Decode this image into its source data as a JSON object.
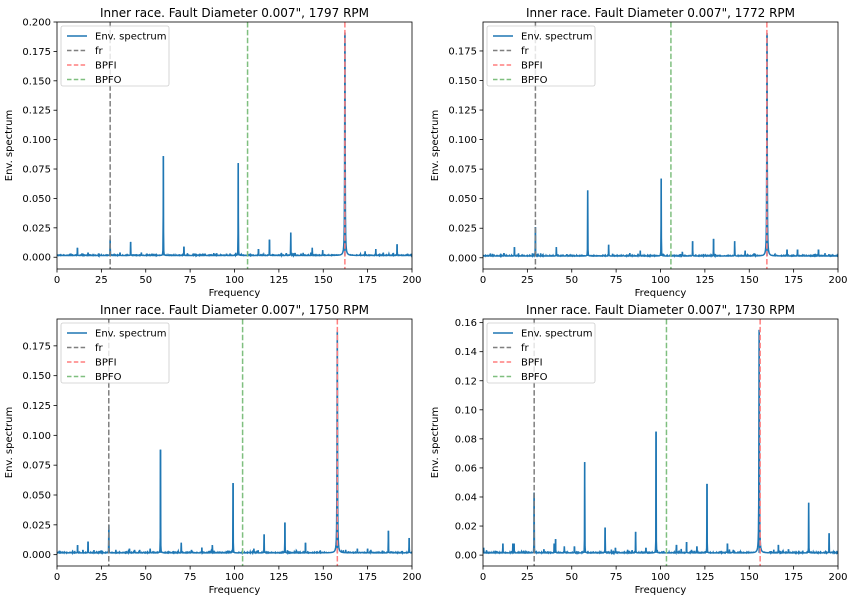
{
  "chart_data": [
    {
      "type": "line",
      "title": "Inner race. Fault Diameter 0.007\", 1797 RPM",
      "xlabel": "Frequency",
      "ylabel": "Env. spectrum",
      "xlim": [
        0,
        200
      ],
      "ylim": [
        -0.01,
        0.2
      ],
      "xticks": [
        0,
        25,
        50,
        75,
        100,
        125,
        150,
        175,
        200
      ],
      "yticks": [
        0.0,
        0.025,
        0.05,
        0.075,
        0.1,
        0.125,
        0.15,
        0.175,
        0.2
      ],
      "ytick_labels": [
        "0.000",
        "0.025",
        "0.050",
        "0.075",
        "0.100",
        "0.125",
        "0.150",
        "0.175",
        "0.200"
      ],
      "grid": false,
      "legend_position": "top-left",
      "legend": [
        "Env. spectrum",
        "fr",
        "BPFI",
        "BPFO"
      ],
      "reference_lines": {
        "fr": 29.95,
        "BPFI": 162.19,
        "BPFO": 107.36
      },
      "noise_floor": 0.0015,
      "peaks": [
        {
          "x": 11.5,
          "y": 0.008
        },
        {
          "x": 17.5,
          "y": 0.004
        },
        {
          "x": 29.95,
          "y": 0.015
        },
        {
          "x": 35.5,
          "y": 0.004
        },
        {
          "x": 41.5,
          "y": 0.013
        },
        {
          "x": 47.5,
          "y": 0.004
        },
        {
          "x": 53.5,
          "y": 0.003
        },
        {
          "x": 59.9,
          "y": 0.086
        },
        {
          "x": 71.5,
          "y": 0.009
        },
        {
          "x": 77.5,
          "y": 0.003
        },
        {
          "x": 83.5,
          "y": 0.003
        },
        {
          "x": 95.5,
          "y": 0.003
        },
        {
          "x": 102.1,
          "y": 0.08
        },
        {
          "x": 113.5,
          "y": 0.007
        },
        {
          "x": 119.7,
          "y": 0.015
        },
        {
          "x": 131.7,
          "y": 0.021
        },
        {
          "x": 137.5,
          "y": 0.003
        },
        {
          "x": 143.8,
          "y": 0.008
        },
        {
          "x": 149.7,
          "y": 0.006
        },
        {
          "x": 162.2,
          "y": 0.191
        },
        {
          "x": 173.6,
          "y": 0.005
        },
        {
          "x": 179.6,
          "y": 0.007
        },
        {
          "x": 191.6,
          "y": 0.011
        },
        {
          "x": 197.5,
          "y": 0.003
        }
      ]
    },
    {
      "type": "line",
      "title": "Inner race. Fault Diameter 0.007\", 1772 RPM",
      "xlabel": "Frequency",
      "ylabel": "Env. spectrum",
      "xlim": [
        0,
        200
      ],
      "ylim": [
        -0.0095,
        0.1995
      ],
      "xticks": [
        0,
        25,
        50,
        75,
        100,
        125,
        150,
        175,
        200
      ],
      "yticks": [
        0.0,
        0.025,
        0.05,
        0.075,
        0.1,
        0.125,
        0.15,
        0.175
      ],
      "ytick_labels": [
        "0.000",
        "0.025",
        "0.050",
        "0.075",
        "0.100",
        "0.125",
        "0.150",
        "0.175"
      ],
      "grid": false,
      "legend_position": "top-left",
      "legend": [
        "Env. spectrum",
        "fr",
        "BPFI",
        "BPFO"
      ],
      "reference_lines": {
        "fr": 29.53,
        "BPFI": 159.93,
        "BPFO": 105.87
      },
      "noise_floor": 0.0015,
      "peaks": [
        {
          "x": 11.8,
          "y": 0.004
        },
        {
          "x": 17.7,
          "y": 0.009
        },
        {
          "x": 29.5,
          "y": 0.026
        },
        {
          "x": 41.3,
          "y": 0.009
        },
        {
          "x": 47.2,
          "y": 0.003
        },
        {
          "x": 59.0,
          "y": 0.057
        },
        {
          "x": 70.8,
          "y": 0.011
        },
        {
          "x": 82.7,
          "y": 0.004
        },
        {
          "x": 88.6,
          "y": 0.006
        },
        {
          "x": 100.4,
          "y": 0.067
        },
        {
          "x": 112.3,
          "y": 0.005
        },
        {
          "x": 118.1,
          "y": 0.014
        },
        {
          "x": 129.9,
          "y": 0.016
        },
        {
          "x": 141.8,
          "y": 0.014
        },
        {
          "x": 147.7,
          "y": 0.006
        },
        {
          "x": 160.0,
          "y": 0.19
        },
        {
          "x": 171.3,
          "y": 0.007
        },
        {
          "x": 177.2,
          "y": 0.007
        },
        {
          "x": 189.0,
          "y": 0.007
        },
        {
          "x": 194.9,
          "y": 0.003
        }
      ]
    },
    {
      "type": "line",
      "title": "Inner race. Fault Diameter 0.007\", 1750 RPM",
      "xlabel": "Frequency",
      "ylabel": "Env. spectrum",
      "xlim": [
        0,
        200
      ],
      "ylim": [
        -0.0095,
        0.1975
      ],
      "xticks": [
        0,
        25,
        50,
        75,
        100,
        125,
        150,
        175,
        200
      ],
      "yticks": [
        0.0,
        0.025,
        0.05,
        0.075,
        0.1,
        0.125,
        0.15,
        0.175
      ],
      "ytick_labels": [
        "0.000",
        "0.025",
        "0.050",
        "0.075",
        "0.100",
        "0.125",
        "0.150",
        "0.175"
      ],
      "grid": false,
      "legend_position": "top-left",
      "legend": [
        "Env. spectrum",
        "fr",
        "BPFI",
        "BPFO"
      ],
      "reference_lines": {
        "fr": 29.17,
        "BPFI": 157.94,
        "BPFO": 104.56
      },
      "noise_floor": 0.0015,
      "peaks": [
        {
          "x": 11.6,
          "y": 0.008
        },
        {
          "x": 14.6,
          "y": 0.004
        },
        {
          "x": 17.5,
          "y": 0.011
        },
        {
          "x": 29.2,
          "y": 0.025
        },
        {
          "x": 40.8,
          "y": 0.005
        },
        {
          "x": 43.7,
          "y": 0.004
        },
        {
          "x": 46.6,
          "y": 0.004
        },
        {
          "x": 52.5,
          "y": 0.005
        },
        {
          "x": 58.3,
          "y": 0.088
        },
        {
          "x": 70.0,
          "y": 0.01
        },
        {
          "x": 75.8,
          "y": 0.004
        },
        {
          "x": 81.6,
          "y": 0.006
        },
        {
          "x": 87.5,
          "y": 0.008
        },
        {
          "x": 99.2,
          "y": 0.06
        },
        {
          "x": 110.9,
          "y": 0.005
        },
        {
          "x": 116.7,
          "y": 0.017
        },
        {
          "x": 128.4,
          "y": 0.027
        },
        {
          "x": 140.0,
          "y": 0.01
        },
        {
          "x": 157.9,
          "y": 0.187
        },
        {
          "x": 169.2,
          "y": 0.005
        },
        {
          "x": 175.0,
          "y": 0.005
        },
        {
          "x": 186.7,
          "y": 0.02
        },
        {
          "x": 198.4,
          "y": 0.014
        }
      ]
    },
    {
      "type": "line",
      "title": "Inner race. Fault Diameter 0.007\", 1730 RPM",
      "xlabel": "Frequency",
      "ylabel": "Env. spectrum",
      "xlim": [
        0,
        200
      ],
      "ylim": [
        -0.0075,
        0.1625
      ],
      "xticks": [
        0,
        25,
        50,
        75,
        100,
        125,
        150,
        175,
        200
      ],
      "yticks": [
        0.0,
        0.02,
        0.04,
        0.06,
        0.08,
        0.1,
        0.12,
        0.14,
        0.16
      ],
      "ytick_labels": [
        "0.00",
        "0.02",
        "0.04",
        "0.06",
        "0.08",
        "0.10",
        "0.12",
        "0.14",
        "0.16"
      ],
      "grid": false,
      "legend_position": "top-left",
      "legend": [
        "Env. spectrum",
        "fr",
        "BPFI",
        "BPFO"
      ],
      "reference_lines": {
        "fr": 28.83,
        "BPFI": 156.14,
        "BPFO": 103.36
      },
      "noise_floor": 0.0015,
      "peaks": [
        {
          "x": 0.4,
          "y": 0.005
        },
        {
          "x": 11.2,
          "y": 0.008
        },
        {
          "x": 16.8,
          "y": 0.008
        },
        {
          "x": 17.5,
          "y": 0.008
        },
        {
          "x": 22.9,
          "y": 0.003
        },
        {
          "x": 28.8,
          "y": 0.043
        },
        {
          "x": 34.3,
          "y": 0.004
        },
        {
          "x": 40.1,
          "y": 0.008
        },
        {
          "x": 40.9,
          "y": 0.011
        },
        {
          "x": 45.8,
          "y": 0.006
        },
        {
          "x": 51.5,
          "y": 0.006
        },
        {
          "x": 57.3,
          "y": 0.064
        },
        {
          "x": 68.8,
          "y": 0.019
        },
        {
          "x": 74.6,
          "y": 0.005
        },
        {
          "x": 86.0,
          "y": 0.016
        },
        {
          "x": 91.8,
          "y": 0.005
        },
        {
          "x": 97.5,
          "y": 0.085
        },
        {
          "x": 109.0,
          "y": 0.007
        },
        {
          "x": 114.7,
          "y": 0.009
        },
        {
          "x": 120.5,
          "y": 0.006
        },
        {
          "x": 126.2,
          "y": 0.049
        },
        {
          "x": 137.7,
          "y": 0.008
        },
        {
          "x": 155.6,
          "y": 0.155
        },
        {
          "x": 166.4,
          "y": 0.007
        },
        {
          "x": 172.1,
          "y": 0.004
        },
        {
          "x": 183.5,
          "y": 0.036
        },
        {
          "x": 195.0,
          "y": 0.015
        }
      ]
    }
  ],
  "colors": {
    "spectrum": "#1f77b4",
    "fr": "#7f7f7f",
    "BPFI": "#ff7f7f",
    "BPFO": "#7fbf7f",
    "axis": "#000000"
  }
}
